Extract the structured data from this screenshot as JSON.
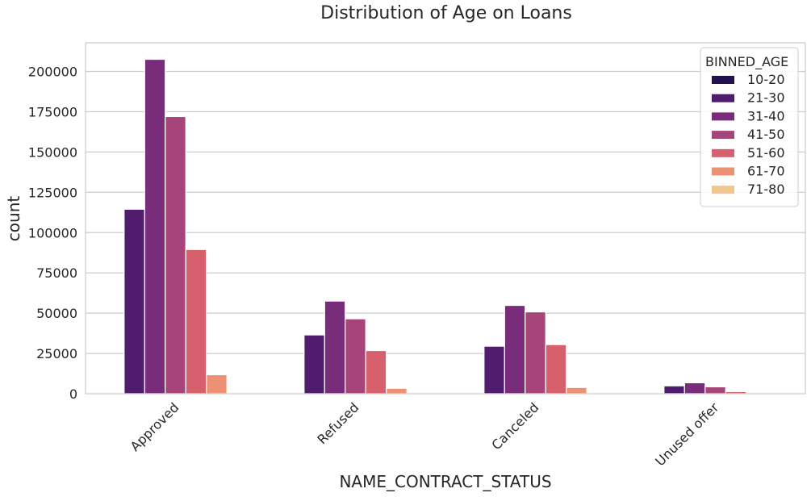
{
  "chart_data": {
    "type": "bar",
    "title": "Distribution of Age on Loans",
    "xlabel": "NAME_CONTRACT_STATUS",
    "ylabel": "count",
    "categories": [
      "Approved",
      "Refused",
      "Canceled",
      "Unused offer"
    ],
    "ylim": [
      0,
      220000
    ],
    "yticks": [
      0,
      25000,
      50000,
      75000,
      100000,
      125000,
      150000,
      175000,
      200000
    ],
    "grid": true,
    "legend_title": "BINNED_AGE",
    "legend_position": "top-right",
    "series": [
      {
        "name": "10-20",
        "color": "#221150",
        "values": [
          0,
          0,
          0,
          0
        ]
      },
      {
        "name": "21-30",
        "color": "#4f1c6e",
        "values": [
          114500,
          36500,
          29500,
          4900
        ]
      },
      {
        "name": "31-40",
        "color": "#782c79",
        "values": [
          207500,
          57500,
          54800,
          6800
        ]
      },
      {
        "name": "41-50",
        "color": "#a7457a",
        "values": [
          172000,
          46500,
          50800,
          4300
        ]
      },
      {
        "name": "51-60",
        "color": "#d6606c",
        "values": [
          89500,
          26800,
          30500,
          1300
        ]
      },
      {
        "name": "61-70",
        "color": "#ec9272",
        "values": [
          11800,
          3400,
          3900,
          0
        ]
      },
      {
        "name": "71-80",
        "color": "#f2c58f",
        "values": [
          0,
          0,
          0,
          0
        ]
      }
    ]
  }
}
